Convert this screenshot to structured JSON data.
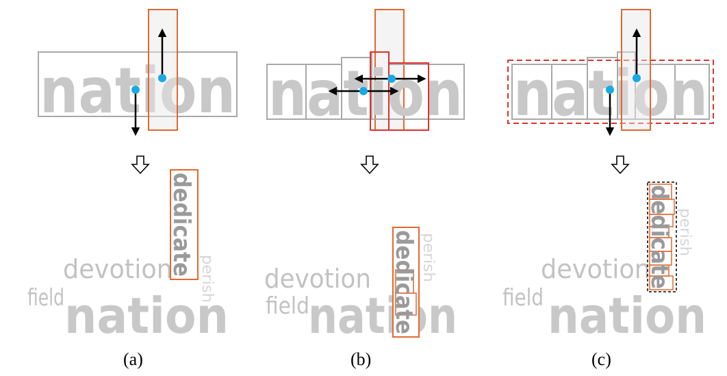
{
  "panels": [
    {
      "caption": "(a)",
      "main_word": "nation",
      "vertical_word": "dedicate",
      "cloud_words": [
        "devotion",
        "field",
        "nation",
        "perish"
      ]
    },
    {
      "caption": "(b)",
      "main_word": "nation",
      "vertical_word": "dedicate",
      "cloud_words": [
        "devotion",
        "field",
        "nation",
        "perish"
      ]
    },
    {
      "caption": "(c)",
      "main_word": "nation",
      "vertical_word": "dedicate",
      "cloud_words": [
        "devotion",
        "field",
        "nation",
        "perish"
      ]
    }
  ],
  "colors": {
    "orange": "#e5672b",
    "red": "#e0302a",
    "dot": "#1aa9e4",
    "gray_box": "#a8a8a8",
    "word_gray": "#c8c8c8"
  },
  "icons": {
    "down_arrow": "hollow-down-arrow-icon",
    "move_arrow": "black-arrow-icon",
    "anchor_point": "blue-dot-icon"
  }
}
